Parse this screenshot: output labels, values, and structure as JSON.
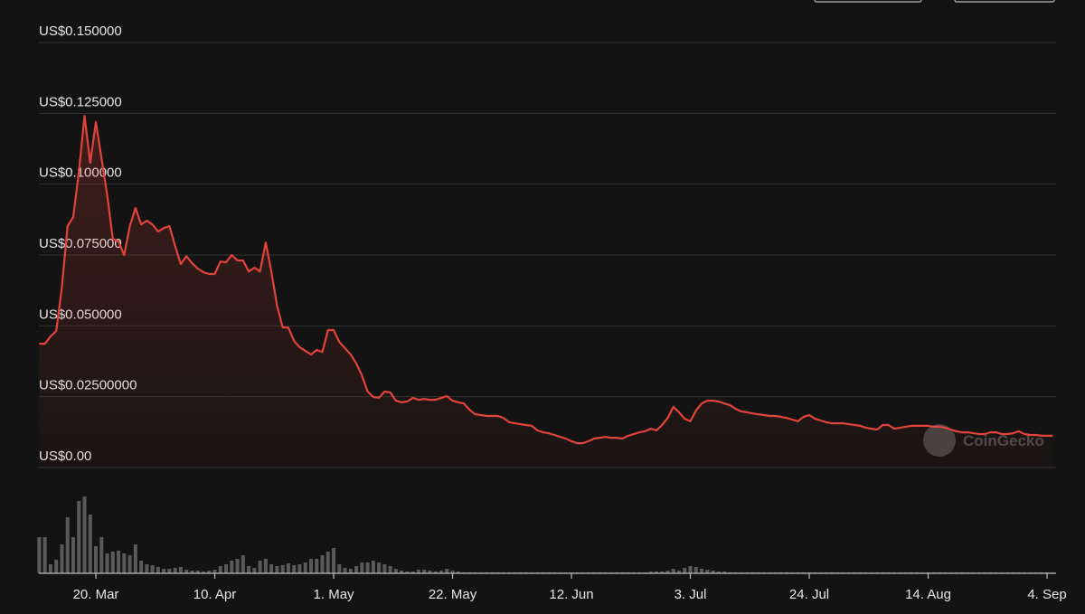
{
  "chart_data": {
    "type": "line",
    "color": "#e0443a",
    "volume_color": "#5a5a5a",
    "watermark": "CoinGecko",
    "grid": true,
    "ylim": [
      0,
      0.15
    ],
    "yticks": [
      {
        "value": 0,
        "label": "US$0.00"
      },
      {
        "value": 0.025,
        "label": "US$0.02500000"
      },
      {
        "value": 0.05,
        "label": "US$0.050000"
      },
      {
        "value": 0.075,
        "label": "US$0.075000"
      },
      {
        "value": 0.1,
        "label": "US$0.100000"
      },
      {
        "value": 0.125,
        "label": "US$0.125000"
      },
      {
        "value": 0.15,
        "label": "US$0.150000"
      }
    ],
    "categories": [
      null,
      null,
      null,
      null,
      null,
      null,
      null,
      null,
      null,
      null,
      "20. Mar",
      null,
      null,
      null,
      null,
      null,
      null,
      null,
      null,
      null,
      null,
      null,
      null,
      null,
      null,
      null,
      null,
      null,
      null,
      null,
      null,
      "10. Apr",
      null,
      null,
      null,
      null,
      null,
      null,
      null,
      null,
      null,
      null,
      null,
      null,
      null,
      null,
      null,
      null,
      null,
      null,
      null,
      null,
      "1. May",
      null,
      null,
      null,
      null,
      null,
      null,
      null,
      null,
      null,
      null,
      null,
      null,
      null,
      null,
      null,
      null,
      null,
      null,
      null,
      null,
      "22. May",
      null,
      null,
      null,
      null,
      null,
      null,
      null,
      null,
      null,
      null,
      null,
      null,
      null,
      null,
      null,
      null,
      null,
      null,
      null,
      null,
      "12. Jun",
      null,
      null,
      null,
      null,
      null,
      null,
      null,
      null,
      null,
      null,
      null,
      null,
      null,
      null,
      null,
      null,
      null,
      null,
      null,
      null,
      "3. Jul",
      null,
      null,
      null,
      null,
      null,
      null,
      null,
      null,
      null,
      null,
      null,
      null,
      null,
      null,
      null,
      null,
      null,
      null,
      null,
      null,
      "24. Jul",
      null,
      null,
      null,
      null,
      null,
      null,
      null,
      null,
      null,
      null,
      null,
      null,
      null,
      null,
      null,
      null,
      null,
      null,
      null,
      null,
      "14. Aug",
      null,
      null,
      null,
      null,
      null,
      null,
      null,
      null,
      null,
      null,
      null,
      null,
      null,
      null,
      null,
      null,
      null,
      null,
      null,
      null,
      "4. Sep",
      null
    ],
    "values": [
      0.0437,
      0.0437,
      0.0463,
      0.0482,
      0.0635,
      0.0852,
      0.0884,
      0.1043,
      0.1241,
      0.1075,
      0.1219,
      0.1091,
      0.0963,
      0.0807,
      0.0798,
      0.075,
      0.0852,
      0.0916,
      0.0858,
      0.0871,
      0.0858,
      0.0833,
      0.0845,
      0.0852,
      0.0782,
      0.0718,
      0.0746,
      0.0721,
      0.0702,
      0.0689,
      0.0683,
      0.0683,
      0.0727,
      0.0724,
      0.075,
      0.0731,
      0.0731,
      0.0692,
      0.0705,
      0.0692,
      0.0794,
      0.0692,
      0.0571,
      0.0494,
      0.0494,
      0.0447,
      0.0424,
      0.0412,
      0.0399,
      0.0415,
      0.0408,
      0.0485,
      0.0485,
      0.0443,
      0.0421,
      0.0399,
      0.0367,
      0.0325,
      0.0268,
      0.0249,
      0.0246,
      0.0268,
      0.0265,
      0.0236,
      0.023,
      0.0233,
      0.0246,
      0.0239,
      0.0242,
      0.0239,
      0.0239,
      0.0246,
      0.0252,
      0.0236,
      0.023,
      0.0226,
      0.0204,
      0.0188,
      0.0185,
      0.0182,
      0.0182,
      0.0182,
      0.0175,
      0.016,
      0.0156,
      0.0153,
      0.015,
      0.0147,
      0.0131,
      0.0124,
      0.0121,
      0.0115,
      0.0108,
      0.0102,
      0.0093,
      0.0086,
      0.0086,
      0.0093,
      0.0102,
      0.0105,
      0.0108,
      0.0105,
      0.0105,
      0.0102,
      0.0112,
      0.0118,
      0.0124,
      0.0128,
      0.0137,
      0.0131,
      0.015,
      0.0175,
      0.0214,
      0.0195,
      0.0172,
      0.0163,
      0.0201,
      0.0226,
      0.0236,
      0.0236,
      0.0233,
      0.0226,
      0.022,
      0.0207,
      0.0198,
      0.0195,
      0.0191,
      0.0188,
      0.0185,
      0.0182,
      0.0182,
      0.0179,
      0.0175,
      0.0169,
      0.0163,
      0.0179,
      0.0185,
      0.0172,
      0.0166,
      0.016,
      0.0156,
      0.0156,
      0.0156,
      0.0153,
      0.015,
      0.0147,
      0.014,
      0.0137,
      0.0134,
      0.015,
      0.015,
      0.0137,
      0.014,
      0.0144,
      0.0147,
      0.0147,
      0.0147,
      0.0147,
      0.0144,
      0.0144,
      0.014,
      0.0134,
      0.0128,
      0.0124,
      0.0124,
      0.0121,
      0.0118,
      0.0118,
      0.0124,
      0.0124,
      0.0118,
      0.0118,
      0.0121,
      0.0128,
      0.0118,
      0.0115,
      0.0115,
      0.0112,
      0.0112,
      0.0112
    ],
    "volume": [
      40,
      40,
      10,
      15,
      32,
      62,
      40,
      80,
      85,
      65,
      30,
      40,
      22,
      24,
      25,
      22,
      20,
      32,
      14,
      10,
      9,
      7,
      5,
      5,
      6,
      7,
      4,
      3,
      3,
      2,
      3,
      4,
      8,
      10,
      14,
      16,
      20,
      8,
      6,
      14,
      16,
      10,
      8,
      9,
      11,
      9,
      10,
      12,
      16,
      16,
      20,
      24,
      28,
      10,
      6,
      5,
      8,
      12,
      12,
      14,
      12,
      10,
      8,
      5,
      3,
      2,
      2,
      4,
      4,
      3,
      2,
      3,
      5,
      3,
      2,
      1,
      1,
      1,
      1,
      1,
      1,
      1,
      1,
      1,
      1,
      1,
      1,
      1,
      1,
      1,
      1,
      1,
      1,
      1,
      1,
      1,
      1,
      1,
      1,
      1,
      1,
      1,
      1,
      1,
      1,
      1,
      1,
      1,
      2,
      2,
      2,
      3,
      5,
      3,
      6,
      8,
      7,
      5,
      4,
      3,
      2,
      2,
      1,
      1,
      1,
      1,
      1,
      1,
      1,
      1,
      1,
      1,
      1,
      1,
      1,
      1,
      1,
      1,
      1,
      1,
      1,
      1,
      1,
      1,
      1,
      1,
      1,
      1,
      1,
      1,
      1,
      1,
      1,
      1,
      1,
      1,
      1,
      1,
      1,
      1,
      1,
      1,
      1,
      1,
      1,
      1,
      1,
      1,
      1,
      1,
      1,
      1,
      1,
      1,
      1,
      1,
      1,
      1,
      1,
      1
    ]
  }
}
